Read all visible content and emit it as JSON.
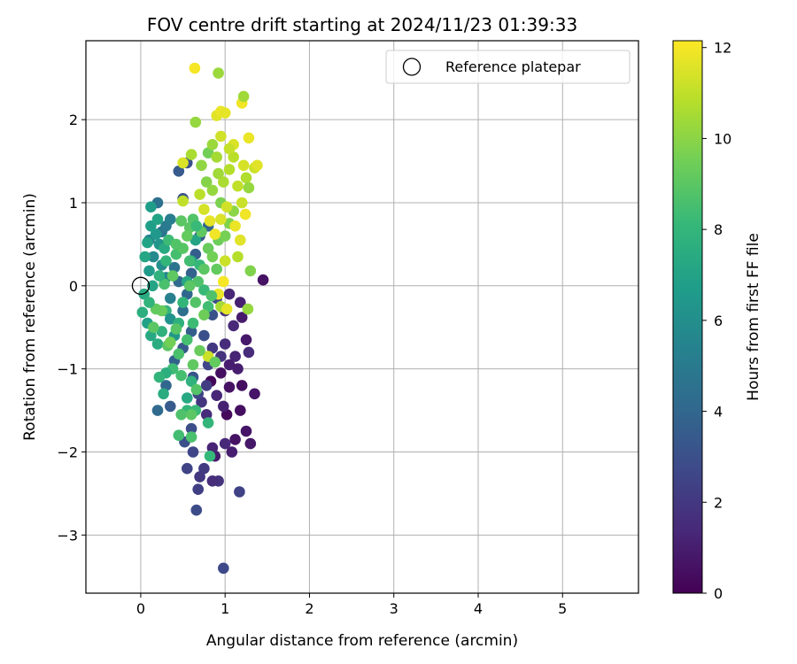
{
  "chart_data": {
    "type": "scatter",
    "title": "FOV centre drift starting at 2024/11/23 01:39:33",
    "xlabel": "Angular distance from reference (arcmin)",
    "ylabel": "Rotation from reference (arcmin)",
    "xlim": [
      -0.65,
      5.9
    ],
    "ylim": [
      -3.7,
      2.95
    ],
    "xticks": [
      0,
      1,
      2,
      3,
      4,
      5
    ],
    "yticks": [
      -3,
      -2,
      -1,
      0,
      1,
      2
    ],
    "xtick_labels": [
      "0",
      "1",
      "2",
      "3",
      "4",
      "5"
    ],
    "ytick_labels": [
      "−3",
      "−2",
      "−1",
      "0",
      "1",
      "2"
    ],
    "grid": true,
    "legend": {
      "position": "top-right",
      "entries": [
        "Reference platepar"
      ]
    },
    "reference_point": {
      "x": 0,
      "y": 0
    },
    "colorbar": {
      "label": "Hours from first FF file",
      "range": [
        0,
        12.15
      ],
      "ticks": [
        0,
        2,
        4,
        6,
        8,
        10,
        12
      ],
      "tick_labels": [
        "0",
        "2",
        "4",
        "6",
        "8",
        "10",
        "12"
      ],
      "colormap": [
        "#440154",
        "#482878",
        "#3e4989",
        "#31688e",
        "#26828e",
        "#1f9e89",
        "#35b779",
        "#6ece58",
        "#b5de2b",
        "#fde725"
      ]
    },
    "points": [
      [
        0.83,
        -1.15,
        0.2
      ],
      [
        0.95,
        -1.05,
        0.5
      ],
      [
        1.02,
        -1.55,
        0.3
      ],
      [
        1.12,
        -1.85,
        0.6
      ],
      [
        1.2,
        -1.2,
        0.4
      ],
      [
        1.3,
        -1.9,
        0.8
      ],
      [
        1.25,
        -1.75,
        0.7
      ],
      [
        1.08,
        -2.0,
        1.0
      ],
      [
        0.88,
        -2.05,
        0.9
      ],
      [
        0.98,
        -1.45,
        1.1
      ],
      [
        0.9,
        -1.32,
        1.3
      ],
      [
        0.78,
        -1.55,
        1.5
      ],
      [
        0.85,
        -1.95,
        1.2
      ],
      [
        1.0,
        -1.9,
        1.4
      ],
      [
        1.18,
        -1.5,
        0.5
      ],
      [
        1.05,
        -1.22,
        0.6
      ],
      [
        0.92,
        -2.35,
        1.8
      ],
      [
        0.85,
        -2.35,
        1.6
      ],
      [
        0.7,
        -2.3,
        2.0
      ],
      [
        0.68,
        -2.45,
        2.3
      ],
      [
        0.75,
        -2.2,
        2.1
      ],
      [
        0.55,
        -2.2,
        2.5
      ],
      [
        0.62,
        -2.0,
        2.6
      ],
      [
        0.66,
        -2.7,
        2.8
      ],
      [
        1.17,
        -2.48,
        2.4
      ],
      [
        0.98,
        -3.4,
        2.7
      ],
      [
        0.52,
        -1.88,
        3.0
      ],
      [
        0.6,
        -1.72,
        2.9
      ],
      [
        0.72,
        -1.4,
        1.9
      ],
      [
        0.78,
        -1.2,
        2.2
      ],
      [
        0.68,
        -1.3,
        2.5
      ],
      [
        0.62,
        -1.1,
        3.2
      ],
      [
        1.05,
        -0.95,
        1.0
      ],
      [
        1.12,
        -0.85,
        1.2
      ],
      [
        1.0,
        -0.7,
        1.6
      ],
      [
        1.1,
        -0.48,
        1.4
      ],
      [
        1.0,
        -0.3,
        1.7
      ],
      [
        1.18,
        -0.2,
        1.1
      ],
      [
        1.45,
        0.07,
        0.6
      ],
      [
        1.05,
        -0.1,
        1.3
      ],
      [
        1.2,
        -0.38,
        0.9
      ],
      [
        1.25,
        -0.65,
        0.8
      ],
      [
        1.28,
        -0.8,
        1.5
      ],
      [
        1.35,
        -1.3,
        0.7
      ],
      [
        1.15,
        -1.0,
        1.0
      ],
      [
        0.85,
        -0.75,
        2.0
      ],
      [
        0.95,
        -0.85,
        1.8
      ],
      [
        0.8,
        -0.95,
        2.6
      ],
      [
        0.75,
        -0.6,
        3.0
      ],
      [
        0.85,
        -0.35,
        3.1
      ],
      [
        0.9,
        -0.15,
        2.8
      ],
      [
        0.6,
        -0.55,
        3.6
      ],
      [
        0.5,
        -0.75,
        3.4
      ],
      [
        0.4,
        -0.9,
        3.8
      ],
      [
        0.3,
        -1.2,
        4.0
      ],
      [
        0.35,
        -1.45,
        3.5
      ],
      [
        0.2,
        -1.5,
        4.2
      ],
      [
        0.5,
        1.05,
        3.2
      ],
      [
        0.45,
        1.38,
        3.5
      ],
      [
        0.55,
        1.48,
        3.0
      ],
      [
        0.2,
        1.0,
        4.5
      ],
      [
        0.25,
        0.65,
        4.8
      ],
      [
        0.3,
        0.72,
        5.0
      ],
      [
        0.35,
        0.8,
        5.2
      ],
      [
        0.1,
        0.55,
        5.5
      ],
      [
        0.15,
        0.35,
        5.8
      ],
      [
        0.25,
        0.25,
        6.0
      ],
      [
        0.3,
        0.1,
        5.6
      ],
      [
        0.4,
        0.22,
        4.6
      ],
      [
        0.45,
        0.05,
        4.2
      ],
      [
        0.35,
        -0.15,
        5.3
      ],
      [
        0.5,
        -0.3,
        4.4
      ],
      [
        0.55,
        -0.1,
        4.0
      ],
      [
        0.6,
        0.15,
        3.8
      ],
      [
        0.65,
        0.38,
        3.6
      ],
      [
        0.7,
        0.6,
        3.4
      ],
      [
        0.8,
        0.72,
        3.9
      ],
      [
        0.22,
        0.5,
        6.3
      ],
      [
        0.18,
        0.62,
        6.5
      ],
      [
        0.12,
        0.72,
        6.8
      ],
      [
        0.08,
        0.52,
        7.0
      ],
      [
        0.05,
        0.35,
        7.2
      ],
      [
        0.1,
        0.18,
        6.6
      ],
      [
        0.14,
        0.0,
        7.1
      ],
      [
        0.04,
        -0.1,
        7.4
      ],
      [
        0.02,
        -0.32,
        7.6
      ],
      [
        0.08,
        -0.45,
        6.9
      ],
      [
        0.12,
        -0.6,
        7.3
      ],
      [
        0.2,
        -0.7,
        7.5
      ],
      [
        0.25,
        -0.55,
        7.8
      ],
      [
        0.3,
        -0.3,
        7.9
      ],
      [
        0.35,
        -0.4,
        6.2
      ],
      [
        0.4,
        -0.6,
        6.4
      ],
      [
        0.45,
        -0.45,
        7.7
      ],
      [
        0.5,
        -0.2,
        8.0
      ],
      [
        0.55,
        0.05,
        7.2
      ],
      [
        0.6,
        0.3,
        6.9
      ],
      [
        0.65,
        0.55,
        7.1
      ],
      [
        0.7,
        0.25,
        8.1
      ],
      [
        0.75,
        -0.05,
        8.2
      ],
      [
        0.8,
        -0.25,
        8.4
      ],
      [
        0.62,
        -0.45,
        8.3
      ],
      [
        0.55,
        -0.65,
        8.5
      ],
      [
        0.45,
        -0.82,
        8.6
      ],
      [
        0.38,
        -1.0,
        8.3
      ],
      [
        0.3,
        -1.05,
        7.6
      ],
      [
        0.22,
        -1.1,
        7.9
      ],
      [
        0.27,
        -1.3,
        7.5
      ],
      [
        0.6,
        -1.15,
        7.8
      ],
      [
        0.55,
        -1.5,
        8.0
      ],
      [
        0.48,
        -1.55,
        8.7
      ],
      [
        0.45,
        -1.8,
        8.4
      ],
      [
        0.6,
        -1.82,
        8.6
      ],
      [
        0.65,
        -1.5,
        8.2
      ],
      [
        0.8,
        -1.65,
        8.0
      ],
      [
        0.82,
        -2.05,
        8.1
      ],
      [
        0.12,
        0.95,
        6.7
      ],
      [
        0.2,
        0.8,
        7.0
      ],
      [
        0.28,
        0.45,
        7.4
      ],
      [
        0.33,
        0.55,
        8.3
      ],
      [
        0.42,
        0.38,
        8.5
      ],
      [
        0.5,
        0.45,
        8.9
      ],
      [
        0.58,
        0.7,
        9.0
      ],
      [
        0.62,
        0.8,
        8.8
      ],
      [
        0.55,
        0.6,
        9.2
      ],
      [
        0.72,
        0.65,
        9.1
      ],
      [
        0.8,
        0.45,
        9.3
      ],
      [
        0.85,
        0.35,
        9.5
      ],
      [
        0.9,
        0.2,
        9.2
      ],
      [
        0.75,
        0.2,
        9.0
      ],
      [
        0.68,
        0.05,
        8.7
      ],
      [
        0.92,
        0.55,
        9.4
      ],
      [
        1.0,
        0.6,
        9.6
      ],
      [
        1.05,
        0.75,
        9.8
      ],
      [
        1.1,
        0.9,
        10.0
      ],
      [
        0.95,
        1.0,
        9.7
      ],
      [
        0.85,
        1.15,
        10.2
      ],
      [
        0.78,
        1.25,
        9.9
      ],
      [
        0.72,
        1.45,
        10.1
      ],
      [
        0.8,
        1.6,
        9.5
      ],
      [
        0.85,
        1.7,
        10.3
      ],
      [
        0.9,
        1.55,
        10.5
      ],
      [
        0.92,
        1.35,
        10.4
      ],
      [
        0.98,
        1.25,
        10.6
      ],
      [
        1.05,
        1.4,
        10.8
      ],
      [
        1.1,
        1.55,
        10.9
      ],
      [
        1.15,
        1.2,
        11.0
      ],
      [
        1.2,
        1.0,
        11.2
      ],
      [
        1.25,
        1.3,
        10.7
      ],
      [
        1.28,
        1.18,
        10.2
      ],
      [
        1.22,
        1.45,
        11.4
      ],
      [
        1.1,
        1.7,
        11.5
      ],
      [
        1.05,
        1.65,
        11.1
      ],
      [
        0.95,
        1.8,
        11.3
      ],
      [
        0.9,
        2.05,
        11.6
      ],
      [
        0.95,
        2.1,
        11.8
      ],
      [
        1.0,
        2.08,
        11.7
      ],
      [
        1.2,
        2.2,
        11.9
      ],
      [
        1.22,
        2.28,
        10.4
      ],
      [
        0.65,
        1.97,
        10.2
      ],
      [
        0.92,
        2.56,
        10.3
      ],
      [
        0.64,
        2.62,
        12.0
      ],
      [
        0.5,
        1.48,
        11.5
      ],
      [
        0.5,
        1.02,
        11.0
      ],
      [
        0.6,
        1.58,
        10.6
      ],
      [
        1.28,
        1.78,
        11.8
      ],
      [
        1.35,
        1.42,
        11.2
      ],
      [
        1.38,
        1.45,
        11.6
      ],
      [
        0.7,
        1.1,
        10.9
      ],
      [
        0.75,
        0.92,
        11.4
      ],
      [
        0.82,
        0.78,
        11.7
      ],
      [
        0.88,
        0.62,
        11.9
      ],
      [
        0.95,
        0.8,
        11.5
      ],
      [
        1.02,
        0.95,
        11.3
      ],
      [
        1.12,
        0.72,
        11.8
      ],
      [
        1.18,
        0.55,
        11.6
      ],
      [
        1.24,
        0.86,
        11.9
      ],
      [
        1.15,
        0.35,
        10.8
      ],
      [
        1.0,
        0.3,
        11.2
      ],
      [
        0.98,
        0.05,
        12.0
      ],
      [
        0.92,
        -0.1,
        11.8
      ],
      [
        0.95,
        -0.25,
        10.5
      ],
      [
        1.02,
        -0.28,
        11.7
      ],
      [
        1.27,
        -0.28,
        10.2
      ],
      [
        1.3,
        0.18,
        9.8
      ],
      [
        0.8,
        -0.85,
        11.2
      ],
      [
        0.58,
        0.0,
        9.0
      ],
      [
        0.65,
        -0.2,
        8.8
      ],
      [
        0.38,
        0.12,
        9.1
      ],
      [
        0.25,
        -0.3,
        9.3
      ],
      [
        0.32,
        -0.72,
        9.0
      ],
      [
        0.42,
        -0.52,
        8.9
      ],
      [
        0.48,
        -1.08,
        8.5
      ],
      [
        0.62,
        -0.95,
        9.1
      ],
      [
        0.7,
        -0.78,
        9.3
      ],
      [
        0.88,
        -0.92,
        9.2
      ],
      [
        0.75,
        -0.35,
        9.4
      ],
      [
        0.84,
        -0.12,
        8.7
      ],
      [
        0.35,
        -0.68,
        9.5
      ],
      [
        0.15,
        -0.5,
        9.0
      ],
      [
        0.18,
        -0.28,
        9.2
      ],
      [
        0.28,
        0.02,
        8.6
      ],
      [
        0.42,
        0.5,
        8.8
      ],
      [
        0.48,
        0.78,
        9.0
      ],
      [
        0.58,
        0.3,
        8.4
      ],
      [
        0.66,
        0.72,
        8.2
      ],
      [
        0.3,
        0.3,
        8.0
      ],
      [
        0.22,
        0.12,
        7.8
      ],
      [
        0.1,
        -0.2,
        7.9
      ],
      [
        0.6,
        -1.55,
        9.0
      ],
      [
        0.66,
        -1.25,
        8.8
      ],
      [
        0.55,
        -1.35,
        7.3
      ]
    ]
  }
}
